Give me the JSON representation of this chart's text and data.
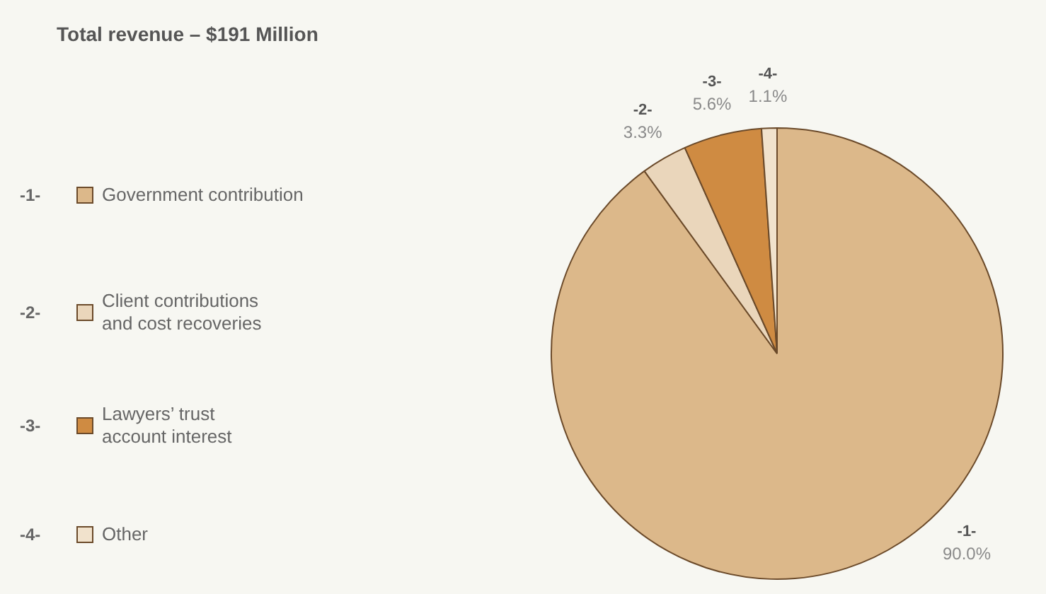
{
  "chart_data": {
    "type": "pie",
    "title": "Total revenue – $191 Million",
    "categories": [
      "Government contribution",
      "Client contributions\nand cost recoveries",
      "Lawyers’ trust\naccount interest",
      "Other"
    ],
    "values": [
      90.0,
      3.3,
      5.6,
      1.1
    ],
    "value_labels": [
      "90.0%",
      "3.3%",
      "5.6%",
      "1.1%"
    ],
    "colors": [
      "#dcb88a",
      "#ead6bb",
      "#cf8b42",
      "#f1e2cc"
    ],
    "annotations": [
      "-1-",
      "-2-",
      "-3-",
      "-4-"
    ],
    "legend": "left"
  }
}
